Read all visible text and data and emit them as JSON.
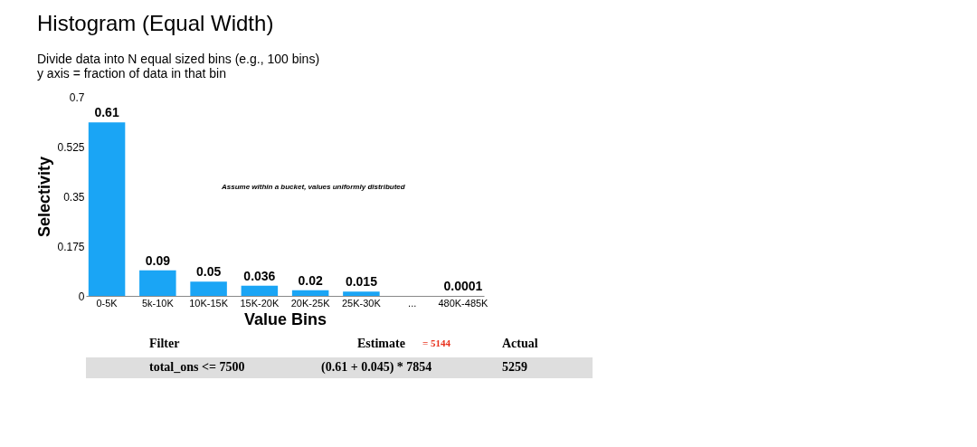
{
  "chart_data": {
    "type": "bar",
    "title": "Histogram (Equal Width)",
    "subtitle": [
      "Divide data into N equal sized bins (e.g., 100 bins)",
      "y axis = fraction of data in that bin"
    ],
    "categories": [
      "0-5K",
      "5k-10K",
      "10K-15K",
      "15K-20K",
      "20K-25K",
      "25K-30K",
      "...",
      "480K-485K"
    ],
    "values": [
      0.61,
      0.09,
      0.05,
      0.036,
      0.02,
      0.015,
      null,
      0.0001
    ],
    "color": "#1aa5f5",
    "xlabel": "Value Bins",
    "ylabel": "Selectivity",
    "ylim": [
      0,
      0.7
    ],
    "yticks": [
      0,
      0.175,
      0.35,
      0.525,
      0.7
    ],
    "grid": false,
    "data_labels": true,
    "annotations": [
      "Assume within a bucket, values uniformly distributed",
      "Filter",
      "Estimate",
      "= 5144",
      "Actual",
      "total_ons <= 7500",
      "(0.61 + 0.045) * 7854",
      "5259"
    ]
  }
}
